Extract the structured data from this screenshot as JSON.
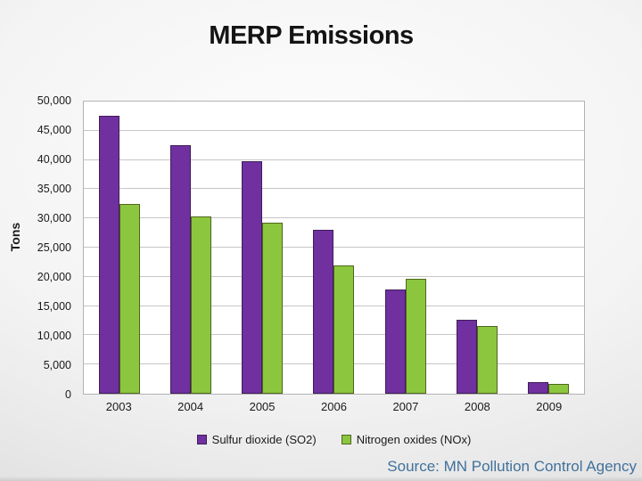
{
  "slide": {
    "title": "MERP Emissions",
    "source": "Source: MN Pollution Control Agency",
    "source_color": "#41719C"
  },
  "chart_data": {
    "type": "bar",
    "title": "MERP Emissions",
    "xlabel": "",
    "ylabel": "Tons",
    "ylim": [
      0,
      50000
    ],
    "ytick_step": 5000,
    "ytick_labels": [
      "0",
      "5,000",
      "10,000",
      "15,000",
      "20,000",
      "25,000",
      "30,000",
      "35,000",
      "40,000",
      "45,000",
      "50,000"
    ],
    "grid": true,
    "legend_position": "bottom",
    "plot_background": "#ffffff",
    "categories": [
      "2003",
      "2004",
      "2005",
      "2006",
      "2007",
      "2008",
      "2009"
    ],
    "series": [
      {
        "name": "Sulfur dioxide (SO2)",
        "color": "#7030A0",
        "border_color": "#3F1E57",
        "values": [
          47200,
          42200,
          39500,
          27800,
          17500,
          12300,
          1700
        ]
      },
      {
        "name": "Nitrogen oxides (NOx)",
        "color": "#8CC63F",
        "border_color": "#4F661C",
        "values": [
          32100,
          30000,
          29000,
          21600,
          19400,
          11300,
          1400
        ]
      }
    ]
  }
}
